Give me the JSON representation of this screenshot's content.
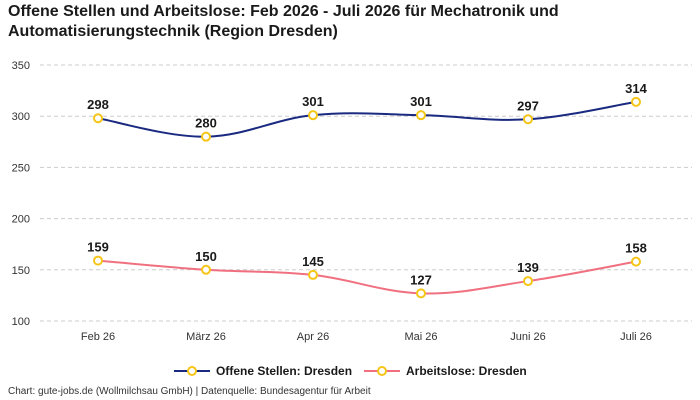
{
  "chart_data": {
    "type": "line",
    "title": "Offene Stellen und Arbeitslose: Feb 2026 - Juli 2026 für Mechatronik und Automatisierungstechnik (Region Dresden)",
    "categories": [
      "Feb 26",
      "März 26",
      "Apr 26",
      "Mai 26",
      "Juni 26",
      "Juli 26"
    ],
    "series": [
      {
        "name": "Offene Stellen: Dresden",
        "values": [
          298,
          280,
          301,
          301,
          297,
          314
        ],
        "color": "#1a2a80"
      },
      {
        "name": "Arbeitslose: Dresden",
        "values": [
          159,
          150,
          145,
          127,
          139,
          158
        ],
        "color": "#f07080"
      }
    ],
    "marker_color": "#f5c518",
    "ylim": [
      100,
      350
    ],
    "yticks": [
      100,
      150,
      200,
      250,
      300,
      350
    ],
    "grid": true,
    "legend": "bottom",
    "xlabel": "",
    "ylabel": ""
  },
  "source": "Chart: gute-jobs.de (Wollmilchsau GmbH) | Datenquelle: Bundesagentur für Arbeit"
}
